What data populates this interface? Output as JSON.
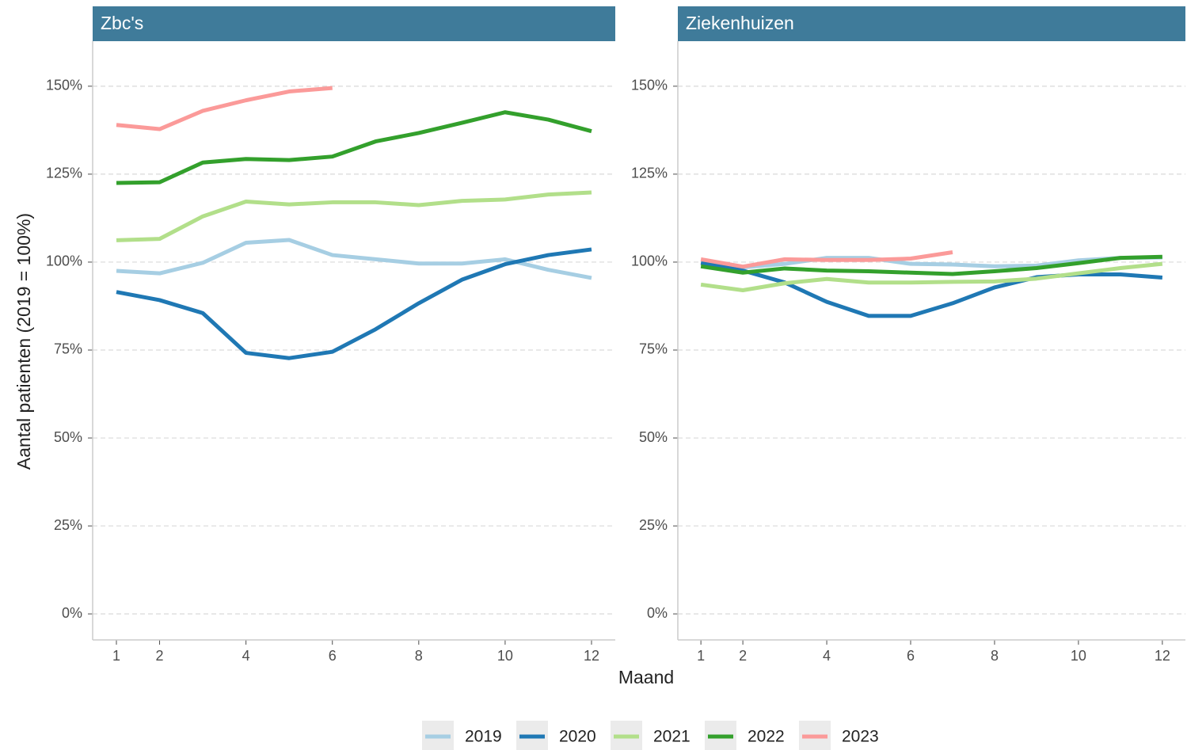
{
  "axis_labels": {
    "x": "Maand",
    "y": "Aantal patienten (2019 = 100%)"
  },
  "chart_data": [
    {
      "type": "line",
      "title": "Zbc's",
      "x": [
        1,
        2,
        3,
        4,
        5,
        6,
        7,
        8,
        9,
        10,
        11,
        12
      ],
      "xlim": [
        0.45,
        12.55
      ],
      "xticks": [
        1,
        2,
        4,
        6,
        8,
        10,
        12
      ],
      "ylim": [
        -7.4,
        162.8
      ],
      "yticks": [
        {
          "value": 0,
          "label": "0%"
        },
        {
          "value": 25,
          "label": "25%"
        },
        {
          "value": 50,
          "label": "50%"
        },
        {
          "value": 75,
          "label": "75%"
        },
        {
          "value": 100,
          "label": "100%"
        },
        {
          "value": 125,
          "label": "125%"
        },
        {
          "value": 150,
          "label": "150%"
        }
      ],
      "grid": true,
      "series": [
        {
          "name": "2019",
          "color": "#a6cee3",
          "values": [
            97.5,
            96.8,
            99.8,
            105.5,
            106.3,
            102,
            100.8,
            99.6,
            99.6,
            100.8,
            97.8,
            95.5
          ]
        },
        {
          "name": "2020",
          "color": "#1f78b4",
          "values": [
            91.5,
            89.2,
            85.5,
            74.2,
            72.7,
            74.5,
            80.9,
            88.3,
            95,
            99.4,
            102,
            103.6
          ]
        },
        {
          "name": "2021",
          "color": "#b2df8a",
          "values": [
            106.2,
            106.6,
            113,
            117.2,
            116.4,
            117,
            117,
            116.2,
            117.4,
            117.8,
            119.2,
            119.8
          ]
        },
        {
          "name": "2022",
          "color": "#33a02c",
          "values": [
            122.5,
            122.7,
            128.3,
            129.3,
            129,
            130,
            134.3,
            136.7,
            139.6,
            142.6,
            140.5,
            137.2
          ]
        },
        {
          "name": "2023",
          "color": "#fb9a99",
          "values": [
            139,
            137.8,
            143,
            146,
            148.5,
            149.5,
            null,
            null,
            null,
            null,
            null,
            null
          ]
        }
      ]
    },
    {
      "type": "line",
      "title": "Ziekenhuizen",
      "x": [
        1,
        2,
        3,
        4,
        5,
        6,
        7,
        8,
        9,
        10,
        11,
        12
      ],
      "xlim": [
        0.45,
        12.55
      ],
      "xticks": [
        1,
        2,
        4,
        6,
        8,
        10,
        12
      ],
      "ylim": [
        -7.4,
        162.8
      ],
      "yticks": [
        {
          "value": 0,
          "label": "0%"
        },
        {
          "value": 25,
          "label": "25%"
        },
        {
          "value": 50,
          "label": "50%"
        },
        {
          "value": 75,
          "label": "75%"
        },
        {
          "value": 100,
          "label": "100%"
        },
        {
          "value": 125,
          "label": "125%"
        },
        {
          "value": 150,
          "label": "150%"
        }
      ],
      "grid": true,
      "series": [
        {
          "name": "2019",
          "color": "#a6cee3",
          "values": [
            99.5,
            98.5,
            99.5,
            101.2,
            101.2,
            99.5,
            99.3,
            98.8,
            99,
            100.5,
            101.2,
            101.3
          ]
        },
        {
          "name": "2020",
          "color": "#1f78b4",
          "values": [
            99.8,
            97.6,
            94.2,
            88.7,
            84.7,
            84.7,
            88.3,
            92.8,
            95.7,
            96.5,
            96.5,
            95.6
          ]
        },
        {
          "name": "2021",
          "color": "#b2df8a",
          "values": [
            93.6,
            92,
            94,
            95.2,
            94.2,
            94.2,
            94.4,
            94.5,
            95.3,
            96.8,
            98.3,
            99.5
          ]
        },
        {
          "name": "2022",
          "color": "#33a02c",
          "values": [
            98.8,
            97,
            98.2,
            97.6,
            97.4,
            97,
            96.6,
            97.4,
            98.3,
            99.7,
            101.2,
            101.5
          ]
        },
        {
          "name": "2023",
          "color": "#fb9a99",
          "values": [
            100.8,
            98.7,
            100.8,
            100.6,
            100.6,
            101,
            102.8,
            null,
            null,
            null,
            null,
            null
          ]
        }
      ]
    }
  ]
}
